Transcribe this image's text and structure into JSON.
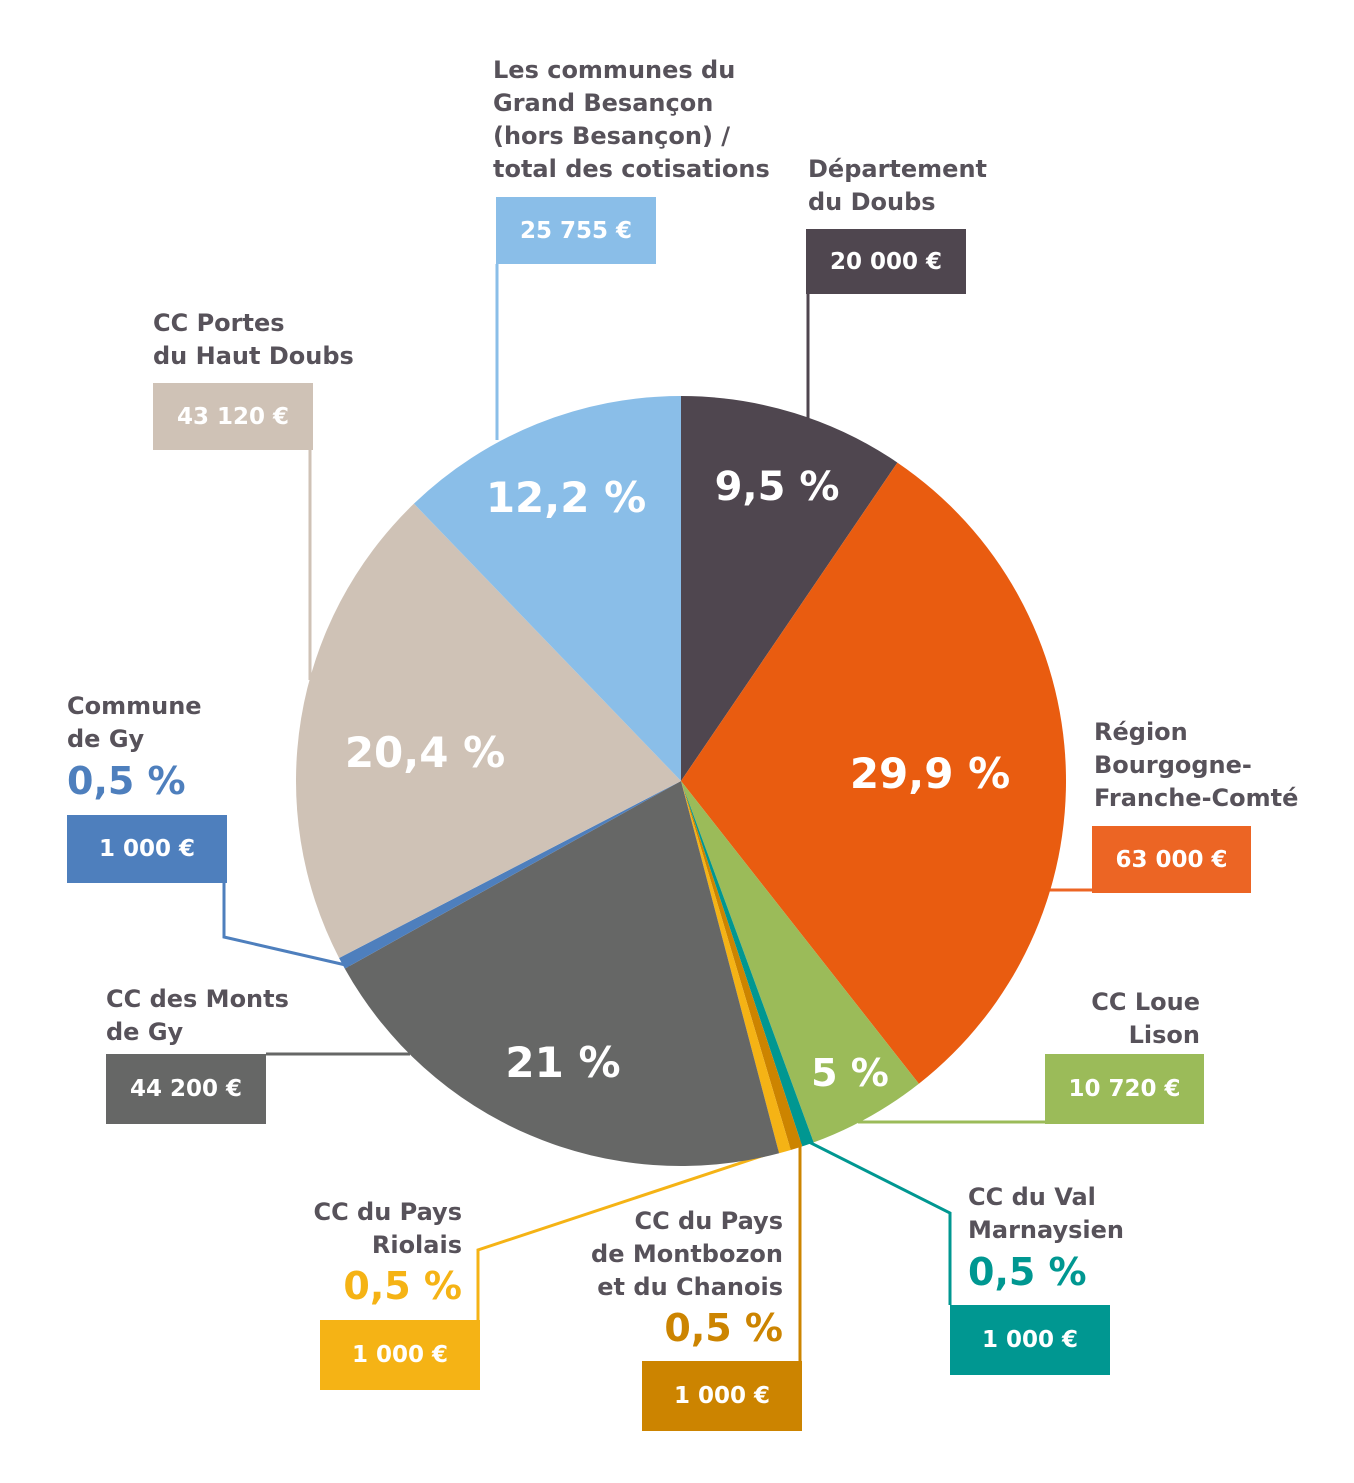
{
  "chart_data": {
    "type": "pie",
    "title": "",
    "slices": [
      {
        "key": "dep",
        "label": "Département\ndu Doubs",
        "value": 9.5,
        "amount": "20 000 €",
        "pct_label": "9,5 %",
        "color": "#4f464f"
      },
      {
        "key": "reg",
        "label": "Région\nBourgogne-\nFranche-Comté",
        "value": 29.9,
        "amount": "63 000 €",
        "pct_label": "29,9 %",
        "color": "#e95c10"
      },
      {
        "key": "loue",
        "label": "CC Loue\nLison",
        "value": 5,
        "amount": "10 720 €",
        "pct_label": "5 %",
        "color": "#9bbb59"
      },
      {
        "key": "val",
        "label": "CC du Val\nMarnaysien",
        "value": 0.5,
        "amount": "1 000 €",
        "pct_label": "0,5 %",
        "color": "#009791"
      },
      {
        "key": "mont",
        "label": "CC du Pays\nde Montbozon\net du Chanois",
        "value": 0.5,
        "amount": "1 000 €",
        "pct_label": "0,5 %",
        "color": "#cc8400"
      },
      {
        "key": "rio",
        "label": "CC du Pays\nRiolais",
        "value": 0.5,
        "amount": "1 000 €",
        "pct_label": "0,5 %",
        "color": "#f5b315"
      },
      {
        "key": "monts",
        "label": "CC des Monts\nde Gy",
        "value": 21,
        "amount": "44 200 €",
        "pct_label": "21 %",
        "color": "#666766"
      },
      {
        "key": "gy",
        "label": "Commune\nde Gy",
        "value": 0.5,
        "amount": "1 000 €",
        "pct_label": "0,5 %",
        "color": "#4e7fbd"
      },
      {
        "key": "portes",
        "label": "CC Portes\ndu Haut Doubs",
        "value": 20.4,
        "amount": "43 120 €",
        "pct_label": "20,4 %",
        "color": "#cfc2b6"
      },
      {
        "key": "grand",
        "label": "Les communes du\nGrand Besançon\n(hors Besançon) /\ntotal des cotisations",
        "value": 12.2,
        "amount": "25 755 €",
        "pct_label": "12,2 %",
        "color": "#8abee8"
      }
    ]
  }
}
